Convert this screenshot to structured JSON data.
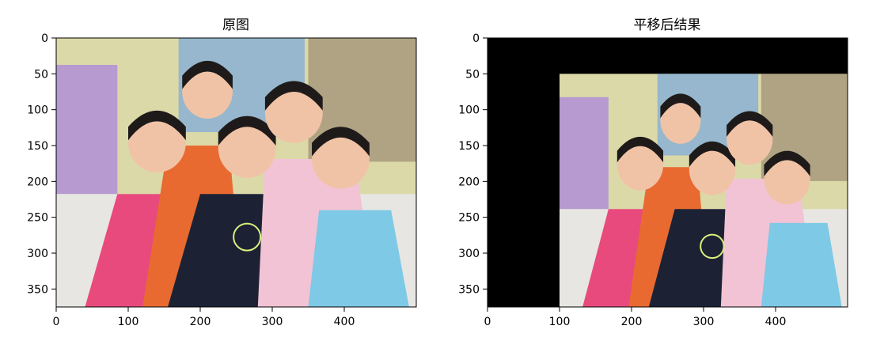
{
  "chart_data": [
    {
      "type": "image",
      "title": "原图",
      "xlim": [
        0,
        500
      ],
      "ylim": [
        375,
        0
      ],
      "xticks": [
        0,
        100,
        200,
        300,
        400
      ],
      "yticks": [
        0,
        50,
        100,
        150,
        200,
        250,
        300,
        350
      ],
      "image_extent": {
        "x0": 0,
        "x1": 500,
        "y0": 0,
        "y1": 375
      },
      "black_fill": []
    },
    {
      "type": "image",
      "title": "平移后结果",
      "xlim": [
        0,
        500
      ],
      "ylim": [
        375,
        0
      ],
      "xticks": [
        0,
        100,
        200,
        300,
        400
      ],
      "yticks": [
        0,
        50,
        100,
        150,
        200,
        250,
        300,
        350
      ],
      "image_extent": {
        "x0": 100,
        "x1": 500,
        "y0": 50,
        "y1": 375
      },
      "black_fill": [
        "top",
        "left"
      ]
    }
  ],
  "colors": {
    "black_fill": "#000000",
    "wall": "#dcd9a8",
    "door": "#b69ad0",
    "sofa": "#e7e6e2",
    "shirt_orange": "#e86a30",
    "shirt_pink": "#e84a7d",
    "shirt_dark": "#1c2234",
    "shirt_light_blue": "#7ec9e6",
    "shirt_light_pink": "#f1c3d4",
    "skin": "#f0c3a6",
    "hair": "#1f1a1a"
  },
  "icon_names": [
    "photo-family-group"
  ]
}
